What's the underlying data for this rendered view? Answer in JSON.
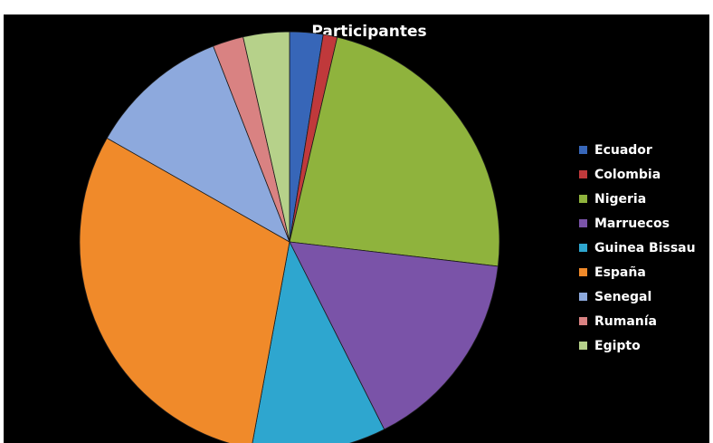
{
  "chart_data": {
    "type": "pie",
    "title": "Participantes",
    "legend_position": "right",
    "start_angle_deg": 0,
    "direction": "clockwise",
    "slices": [
      {
        "name": "Ecuador",
        "value": 2.6,
        "color": "#3766b8"
      },
      {
        "name": "Colombia",
        "value": 1.1,
        "color": "#c0393b"
      },
      {
        "name": "Nigeria",
        "value": 23.5,
        "color": "#8fb33d"
      },
      {
        "name": "Marruecos",
        "value": 15.9,
        "color": "#7a53a8"
      },
      {
        "name": "Guinea Bissau",
        "value": 10.5,
        "color": "#2ea6cf"
      },
      {
        "name": "España",
        "value": 30.7,
        "color": "#f08a2a"
      },
      {
        "name": "Senegal",
        "value": 11.0,
        "color": "#8da9dd"
      },
      {
        "name": "Rumanía",
        "value": 2.4,
        "color": "#d98282"
      },
      {
        "name": "Egipto",
        "value": 3.6,
        "color": "#b6d18a"
      }
    ]
  }
}
